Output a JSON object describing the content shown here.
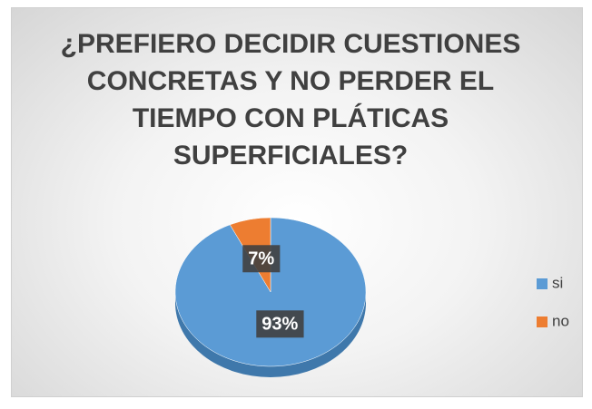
{
  "chart_data": {
    "type": "pie",
    "title": "¿PREFIERO DECIDIR CUESTIONES CONCRETAS Y NO PERDER EL TIEMPO CON PLÁTICAS SUPERFICIALES?",
    "categories": [
      "si",
      "no"
    ],
    "values": [
      93,
      7
    ],
    "value_labels": [
      "93%",
      "7%"
    ],
    "colors": [
      "#5b9bd5",
      "#ed7d31"
    ],
    "legend": "right"
  }
}
